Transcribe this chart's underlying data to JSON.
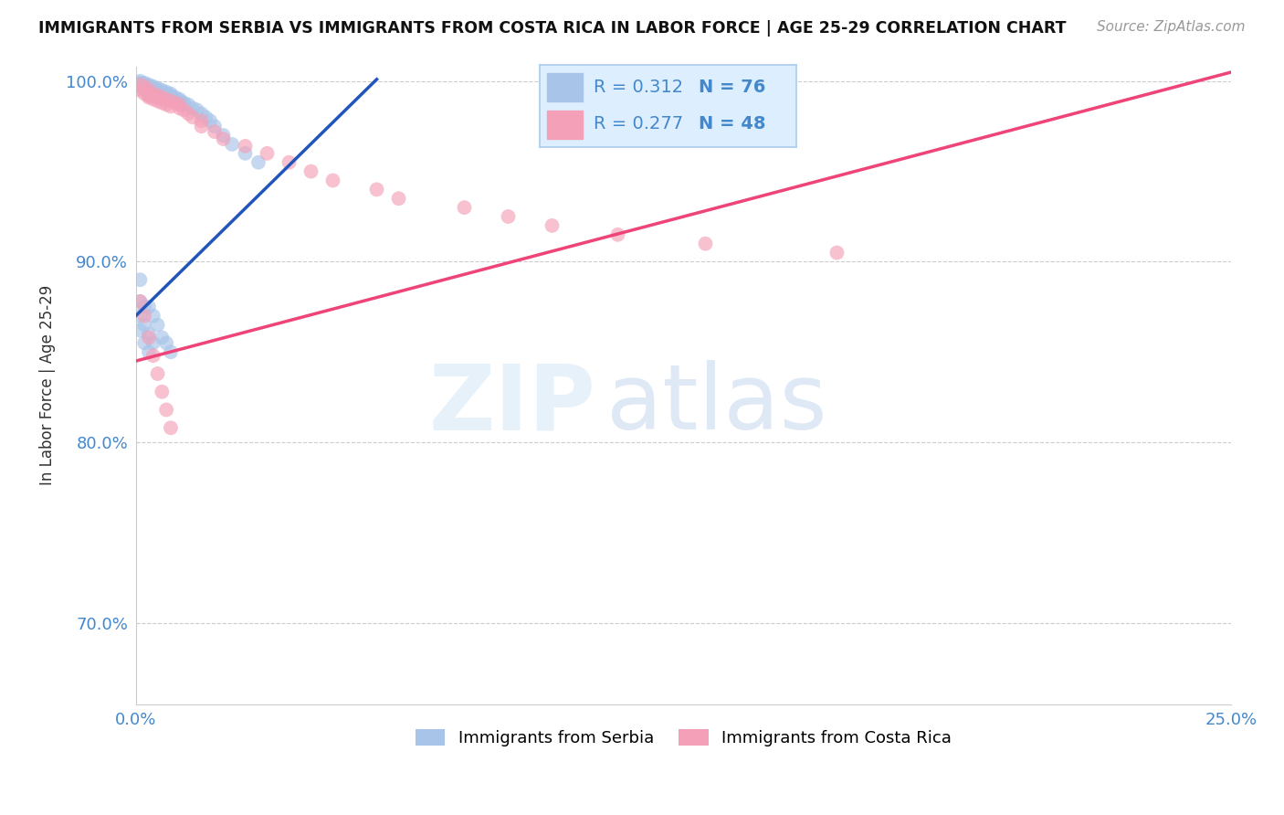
{
  "title": "IMMIGRANTS FROM SERBIA VS IMMIGRANTS FROM COSTA RICA IN LABOR FORCE | AGE 25-29 CORRELATION CHART",
  "source": "Source: ZipAtlas.com",
  "ylabel": "In Labor Force | Age 25-29",
  "xlim": [
    0.0,
    0.25
  ],
  "ylim": [
    0.655,
    1.008
  ],
  "xticks": [
    0.0,
    0.05,
    0.1,
    0.15,
    0.2,
    0.25
  ],
  "xticklabels": [
    "0.0%",
    "",
    "",
    "",
    "",
    "25.0%"
  ],
  "yticks": [
    0.7,
    0.8,
    0.9,
    1.0
  ],
  "yticklabels": [
    "70.0%",
    "80.0%",
    "90.0%",
    "100.0%"
  ],
  "serbia_R": 0.312,
  "serbia_N": 76,
  "costa_rica_R": 0.277,
  "costa_rica_N": 48,
  "serbia_color": "#a8c4e8",
  "costa_rica_color": "#f4a0b8",
  "serbia_line_color": "#2255bb",
  "costa_rica_line_color": "#ee4477",
  "legend_box_facecolor": "#ddeeff",
  "legend_box_edgecolor": "#aaccee",
  "legend_text_color": "#4488cc",
  "serbia_x": [
    0.001,
    0.001,
    0.001,
    0.001,
    0.001,
    0.002,
    0.002,
    0.002,
    0.002,
    0.002,
    0.002,
    0.002,
    0.003,
    0.003,
    0.003,
    0.003,
    0.003,
    0.003,
    0.003,
    0.004,
    0.004,
    0.004,
    0.004,
    0.004,
    0.005,
    0.005,
    0.005,
    0.005,
    0.005,
    0.005,
    0.006,
    0.006,
    0.006,
    0.006,
    0.006,
    0.007,
    0.007,
    0.007,
    0.007,
    0.008,
    0.008,
    0.008,
    0.009,
    0.009,
    0.01,
    0.01,
    0.01,
    0.011,
    0.011,
    0.012,
    0.013,
    0.014,
    0.015,
    0.016,
    0.017,
    0.018,
    0.02,
    0.022,
    0.025,
    0.028,
    0.001,
    0.001,
    0.001,
    0.001,
    0.002,
    0.002,
    0.002,
    0.003,
    0.003,
    0.003,
    0.004,
    0.004,
    0.005,
    0.006,
    0.007,
    0.008
  ],
  "serbia_y": [
    1.0,
    0.999,
    0.998,
    0.998,
    0.997,
    0.999,
    0.998,
    0.998,
    0.997,
    0.996,
    0.996,
    0.995,
    0.998,
    0.997,
    0.996,
    0.995,
    0.994,
    0.993,
    0.992,
    0.997,
    0.996,
    0.995,
    0.994,
    0.993,
    0.996,
    0.995,
    0.994,
    0.993,
    0.992,
    0.991,
    0.995,
    0.994,
    0.993,
    0.992,
    0.991,
    0.994,
    0.993,
    0.992,
    0.991,
    0.993,
    0.992,
    0.991,
    0.991,
    0.99,
    0.99,
    0.989,
    0.988,
    0.988,
    0.987,
    0.987,
    0.985,
    0.984,
    0.982,
    0.98,
    0.978,
    0.975,
    0.97,
    0.965,
    0.96,
    0.955,
    0.89,
    0.878,
    0.87,
    0.862,
    0.875,
    0.865,
    0.855,
    0.875,
    0.86,
    0.85,
    0.87,
    0.855,
    0.865,
    0.858,
    0.855,
    0.85
  ],
  "costa_rica_x": [
    0.001,
    0.001,
    0.002,
    0.002,
    0.003,
    0.003,
    0.003,
    0.004,
    0.004,
    0.005,
    0.005,
    0.006,
    0.006,
    0.007,
    0.007,
    0.008,
    0.008,
    0.009,
    0.01,
    0.01,
    0.011,
    0.012,
    0.013,
    0.015,
    0.015,
    0.018,
    0.02,
    0.025,
    0.03,
    0.035,
    0.04,
    0.045,
    0.055,
    0.06,
    0.075,
    0.085,
    0.095,
    0.11,
    0.13,
    0.16,
    0.001,
    0.002,
    0.003,
    0.004,
    0.005,
    0.006,
    0.007,
    0.008
  ],
  "costa_rica_y": [
    0.998,
    0.995,
    0.997,
    0.993,
    0.995,
    0.992,
    0.991,
    0.993,
    0.99,
    0.992,
    0.989,
    0.991,
    0.988,
    0.99,
    0.987,
    0.989,
    0.986,
    0.988,
    0.987,
    0.985,
    0.984,
    0.982,
    0.98,
    0.978,
    0.975,
    0.972,
    0.968,
    0.964,
    0.96,
    0.955,
    0.95,
    0.945,
    0.94,
    0.935,
    0.93,
    0.925,
    0.92,
    0.915,
    0.91,
    0.905,
    0.878,
    0.87,
    0.858,
    0.848,
    0.838,
    0.828,
    0.818,
    0.808
  ],
  "serbia_line_x0": 0.0,
  "serbia_line_x1": 0.055,
  "serbia_line_y0": 0.87,
  "serbia_line_y1": 1.001,
  "costa_rica_line_x0": 0.0,
  "costa_rica_line_x1": 0.25,
  "costa_rica_line_y0": 0.845,
  "costa_rica_line_y1": 1.005
}
